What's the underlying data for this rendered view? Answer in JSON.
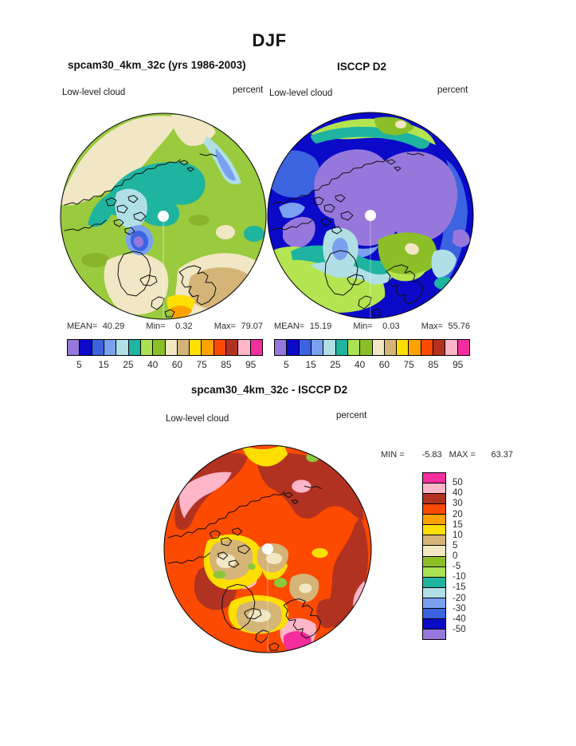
{
  "title": "DJF",
  "palette": {
    "colors_low_to_high": [
      "#9678dc",
      "#0a0ac8",
      "#3c64e1",
      "#7aa0f0",
      "#b0dfe6",
      "#1eb4a0",
      "#abe155",
      "#8cbe28",
      "#f1e7c4",
      "#d5b478",
      "#ffdf00",
      "#ffa200",
      "#fc4a00",
      "#b23221",
      "#ffb6c8",
      "#f62d9c"
    ]
  },
  "panels": {
    "model": {
      "title": "spcam30_4km_32c (yrs 1986-2003)",
      "field": "Low-level cloud",
      "units": "percent",
      "stats": {
        "mean_label": "MEAN=",
        "mean": "40.29",
        "min_label": "Min=",
        "min": "0.32",
        "max_label": "Max=",
        "max": "79.07"
      }
    },
    "obs": {
      "title": "ISCCP D2",
      "field": "Low-level cloud",
      "units": "percent",
      "stats": {
        "mean_label": "MEAN=",
        "mean": "15.19",
        "min_label": "Min=",
        "min": "0.03",
        "max_label": "Max=",
        "max": "55.76"
      }
    },
    "diff": {
      "title": "spcam30_4km_32c - ISCCP D2",
      "field": "Low-level cloud",
      "units": "percent",
      "min_label": "MIN =",
      "min": "-5.83",
      "max_label": "MAX =",
      "max": "63.37"
    }
  },
  "colorbar": {
    "tick_labels": [
      "5",
      "15",
      "25",
      "40",
      "60",
      "75",
      "85",
      "95"
    ],
    "tick_boundary_indices": [
      1,
      3,
      5,
      7,
      9,
      11,
      13,
      15
    ]
  },
  "diff_colorbar": {
    "labels_top_to_bottom": [
      "50",
      "40",
      "30",
      "20",
      "15",
      "10",
      "5",
      "0",
      "-5",
      "-10",
      "-15",
      "-20",
      "-30",
      "-40",
      "-50"
    ]
  },
  "chart_data": [
    {
      "type": "heatmap",
      "title": "spcam30_4km_32c (yrs 1986-2003)",
      "season": "DJF",
      "variable": "Low-level cloud",
      "units": "percent",
      "projection": "north polar stereographic",
      "mean": 40.29,
      "min": 0.32,
      "max": 79.07,
      "contour_levels": [
        5,
        10,
        15,
        20,
        25,
        30,
        40,
        50,
        60,
        70,
        75,
        80,
        85,
        90,
        95
      ],
      "labeled_levels": [
        5,
        15,
        25,
        40,
        60,
        75,
        85,
        95
      ],
      "palette_low_to_high": [
        "#9678dc",
        "#0a0ac8",
        "#3c64e1",
        "#7aa0f0",
        "#b0dfe6",
        "#1eb4a0",
        "#abe155",
        "#8cbe28",
        "#f1e7c4",
        "#d5b478",
        "#ffdf00",
        "#ffa200",
        "#fc4a00",
        "#b23221",
        "#ffb6c8",
        "#f62d9c"
      ]
    },
    {
      "type": "heatmap",
      "title": "ISCCP D2",
      "season": "DJF",
      "variable": "Low-level cloud",
      "units": "percent",
      "projection": "north polar stereographic",
      "mean": 15.19,
      "min": 0.03,
      "max": 55.76,
      "contour_levels": [
        5,
        10,
        15,
        20,
        25,
        30,
        40,
        50,
        60,
        70,
        75,
        80,
        85,
        90,
        95
      ],
      "labeled_levels": [
        5,
        15,
        25,
        40,
        60,
        75,
        85,
        95
      ],
      "palette_low_to_high": [
        "#9678dc",
        "#0a0ac8",
        "#3c64e1",
        "#7aa0f0",
        "#b0dfe6",
        "#1eb4a0",
        "#abe155",
        "#8cbe28",
        "#f1e7c4",
        "#d5b478",
        "#ffdf00",
        "#ffa200",
        "#fc4a00",
        "#b23221",
        "#ffb6c8",
        "#f62d9c"
      ]
    },
    {
      "type": "heatmap",
      "title": "spcam30_4km_32c - ISCCP D2",
      "season": "DJF",
      "variable": "Low-level cloud",
      "units": "percent",
      "projection": "north polar stereographic",
      "min": -5.83,
      "max": 63.37,
      "contour_levels": [
        -50,
        -40,
        -30,
        -20,
        -15,
        -10,
        -5,
        0,
        5,
        10,
        15,
        20,
        30,
        40,
        50
      ],
      "palette_low_to_high": [
        "#9678dc",
        "#0a0ac8",
        "#3c64e1",
        "#7aa0f0",
        "#b0dfe6",
        "#1eb4a0",
        "#abe155",
        "#8cbe28",
        "#f1e7c4",
        "#d5b478",
        "#ffdf00",
        "#ffa200",
        "#fc4a00",
        "#b23221",
        "#ffb6c8",
        "#f62d9c"
      ]
    }
  ]
}
